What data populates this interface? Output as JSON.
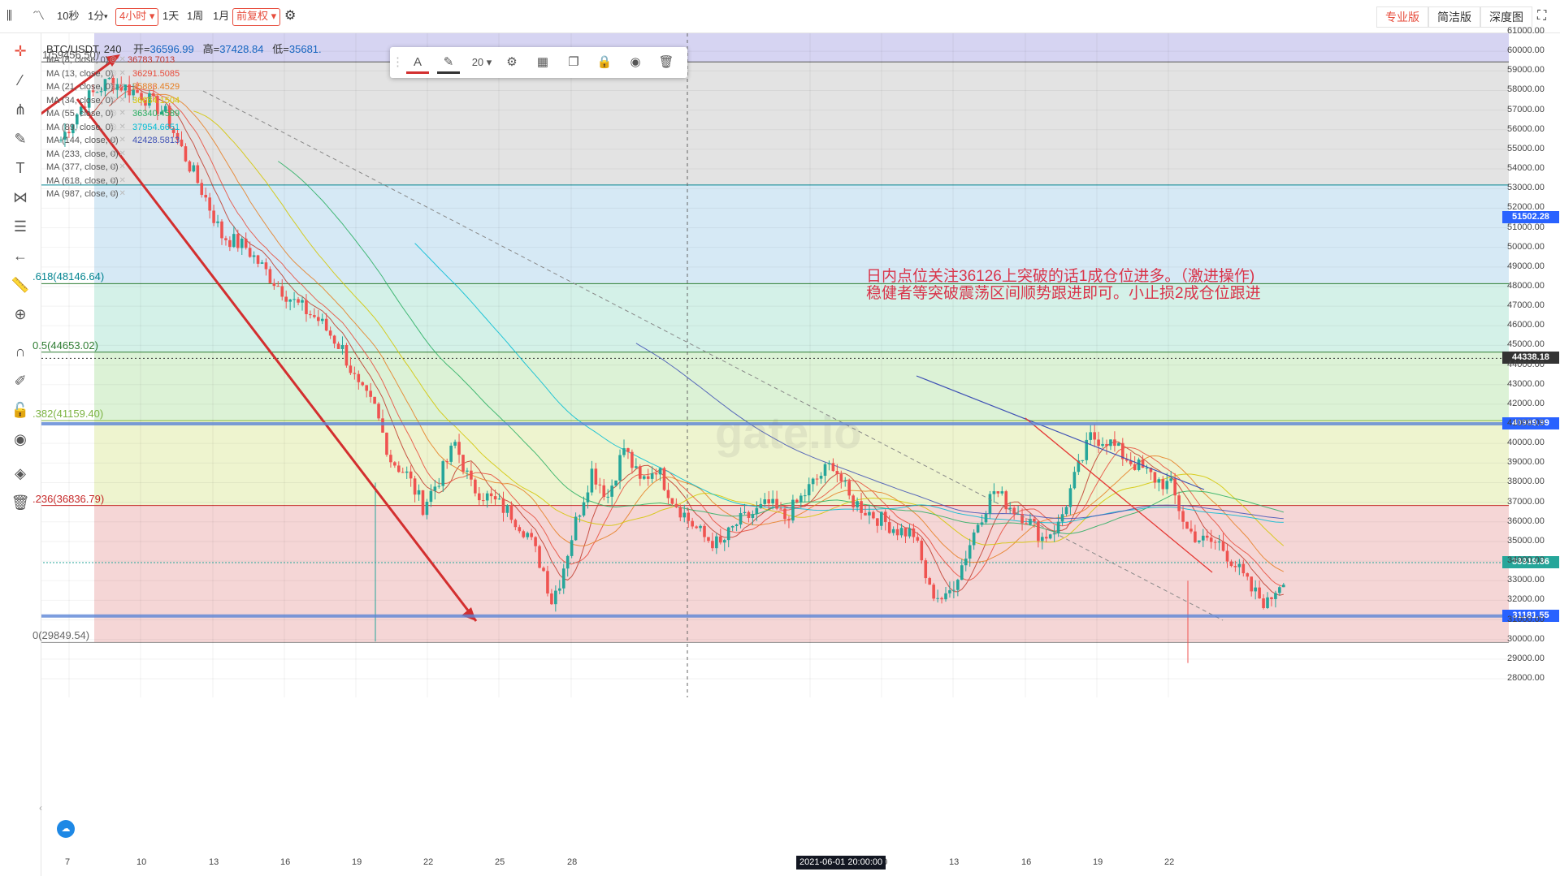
{
  "toolbar": {
    "intervals": [
      "10秒",
      "1分",
      "4小时",
      "1天",
      "1周",
      "1月"
    ],
    "active_interval": "4小时",
    "adjust": "前复权",
    "versions": [
      "专业版",
      "简洁版",
      "深度图"
    ],
    "active_version": "专业版"
  },
  "legend": {
    "symbol": "BTC/USDT, 240",
    "open_label": "开=",
    "open": "36596.99",
    "high_label": "高=",
    "high": "37428.84",
    "low_label": "低=",
    "low": "35681."
  },
  "ma_list": [
    {
      "label": "MA (8, close, 0)",
      "value": "36783.7013",
      "color": "#c0392b"
    },
    {
      "label": "MA (13, close, 0)",
      "value": "36291.5085",
      "color": "#e74c3c"
    },
    {
      "label": "MA (21, close, 0)",
      "value": "35883.4529",
      "color": "#e67e22"
    },
    {
      "label": "MA (34, close, 0)",
      "value": "36084.1504",
      "color": "#d4c600"
    },
    {
      "label": "MA (55, close, 0)",
      "value": "36340.4589",
      "color": "#27ae60"
    },
    {
      "label": "MA (89, close, 0)",
      "value": "37954.6651",
      "color": "#00bcd4"
    },
    {
      "label": "MA (144, close, 0)",
      "value": "42428.5813",
      "color": "#3f51b5"
    },
    {
      "label": "MA (233, close, 0)",
      "value": ""
    },
    {
      "label": "MA (377, close, 0)",
      "value": ""
    },
    {
      "label": "MA (618, close, 0)",
      "value": ""
    },
    {
      "label": "MA (987, close, 0)",
      "value": ""
    }
  ],
  "fib_labels": [
    {
      "text": "1(59456.50)",
      "price": 59456.5
    },
    {
      "text": ".618(48146.64)",
      "price": 48146.64
    },
    {
      "text": "0.5(44653.02)",
      "price": 44653.02
    },
    {
      "text": ".382(41159.40)",
      "price": 41159.4
    },
    {
      "text": ".236(36836.79)",
      "price": 36836.79
    },
    {
      "text": "0(29849.54)",
      "price": 29849.54
    }
  ],
  "price_tags": [
    {
      "text": "51502.28",
      "price": 51502.28,
      "color": "#2962ff"
    },
    {
      "text": "44338.18",
      "price": 44338.18,
      "color": "#333333"
    },
    {
      "text": "40989.99",
      "price": 40989.99,
      "color": "#2962ff"
    },
    {
      "text": "33919.36",
      "price": 33919.36,
      "color": "#26a69a"
    },
    {
      "text": "31181.55",
      "price": 31181.55,
      "color": "#2962ff"
    }
  ],
  "crosshair_label": "2021-06-01 20:00:00",
  "note_lines": [
    "日内点位关注36126上突破的话1成仓位进多。（激进操作)",
    "稳健者等突破震荡区间顺势跟进即可。小止损2成仓位跟进"
  ],
  "watermark": "gate.io",
  "chart_data": {
    "type": "candlestick",
    "title": "BTC/USDT, 240",
    "ylim": [
      27500,
      61500
    ],
    "yticks": [
      28000,
      29000,
      30000,
      31000,
      32000,
      33000,
      34000,
      35000,
      36000,
      37000,
      38000,
      39000,
      40000,
      41000,
      42000,
      43000,
      44000,
      45000,
      46000,
      47000,
      48000,
      49000,
      50000,
      51000,
      52000,
      53000,
      54000,
      55000,
      56000,
      57000,
      58000,
      59000,
      60000,
      61000
    ],
    "xtick_labels": [
      "7",
      "10",
      "13",
      "16",
      "19",
      "22",
      "25",
      "28",
      "7",
      "10",
      "13",
      "16",
      "19",
      "22"
    ],
    "close_path": [
      [
        0,
        55500
      ],
      [
        6,
        57500
      ],
      [
        12,
        58500
      ],
      [
        20,
        57800
      ],
      [
        26,
        56800
      ],
      [
        30,
        55000
      ],
      [
        36,
        52500
      ],
      [
        40,
        50600
      ],
      [
        46,
        50000
      ],
      [
        52,
        48500
      ],
      [
        58,
        47200
      ],
      [
        64,
        46300
      ],
      [
        70,
        44800
      ],
      [
        74,
        42800
      ],
      [
        78,
        41800
      ],
      [
        82,
        39200
      ],
      [
        86,
        38400
      ],
      [
        90,
        36800
      ],
      [
        94,
        38200
      ],
      [
        98,
        40000
      ],
      [
        102,
        37800
      ],
      [
        108,
        37000
      ],
      [
        112,
        36400
      ],
      [
        116,
        35400
      ],
      [
        120,
        33500
      ],
      [
        122,
        32000
      ],
      [
        124,
        33000
      ],
      [
        128,
        36000
      ],
      [
        132,
        38600
      ],
      [
        136,
        37300
      ],
      [
        140,
        39800
      ],
      [
        144,
        38000
      ],
      [
        148,
        38800
      ],
      [
        152,
        37200
      ],
      [
        156,
        36100
      ],
      [
        160,
        35200
      ],
      [
        164,
        34800
      ],
      [
        168,
        35900
      ],
      [
        172,
        36400
      ],
      [
        176,
        36900
      ],
      [
        180,
        36200
      ],
      [
        184,
        37200
      ],
      [
        188,
        38200
      ],
      [
        192,
        39000
      ],
      [
        196,
        37200
      ],
      [
        200,
        36600
      ],
      [
        204,
        36100
      ],
      [
        208,
        35600
      ],
      [
        212,
        35400
      ],
      [
        216,
        32500
      ],
      [
        220,
        32000
      ],
      [
        224,
        33800
      ],
      [
        228,
        36000
      ],
      [
        232,
        37600
      ],
      [
        236,
        36800
      ],
      [
        240,
        36200
      ],
      [
        244,
        35200
      ],
      [
        248,
        35800
      ],
      [
        252,
        38200
      ],
      [
        256,
        40300
      ],
      [
        260,
        40200
      ],
      [
        264,
        39400
      ],
      [
        268,
        38800
      ],
      [
        272,
        38200
      ],
      [
        276,
        37800
      ],
      [
        280,
        35600
      ],
      [
        284,
        35000
      ],
      [
        288,
        34900
      ],
      [
        292,
        33800
      ],
      [
        296,
        32500
      ],
      [
        300,
        31800
      ],
      [
        302,
        32600
      ],
      [
        304,
        33200
      ]
    ],
    "ma_series": [
      {
        "period": 8,
        "color": "#c0392b"
      },
      {
        "period": 13,
        "color": "#e74c3c"
      },
      {
        "period": 21,
        "color": "#e67e22"
      },
      {
        "period": 34,
        "color": "#d4c600"
      },
      {
        "period": 55,
        "color": "#27ae60"
      },
      {
        "period": 89,
        "color": "#00bcd4"
      },
      {
        "period": 144,
        "color": "#3f51b5"
      }
    ],
    "fib_levels": [
      {
        "level": "1",
        "price": 59456.5
      },
      {
        "level": "0.786",
        "price": 53180
      },
      {
        "level": "0.618",
        "price": 48146.64
      },
      {
        "level": "0.5",
        "price": 44653.02
      },
      {
        "level": "0.382",
        "price": 41159.4
      },
      {
        "level": "0.236",
        "price": 36836.79
      },
      {
        "level": "0",
        "price": 29849.54
      }
    ],
    "horizontal_lines": [
      41000,
      31200
    ]
  }
}
